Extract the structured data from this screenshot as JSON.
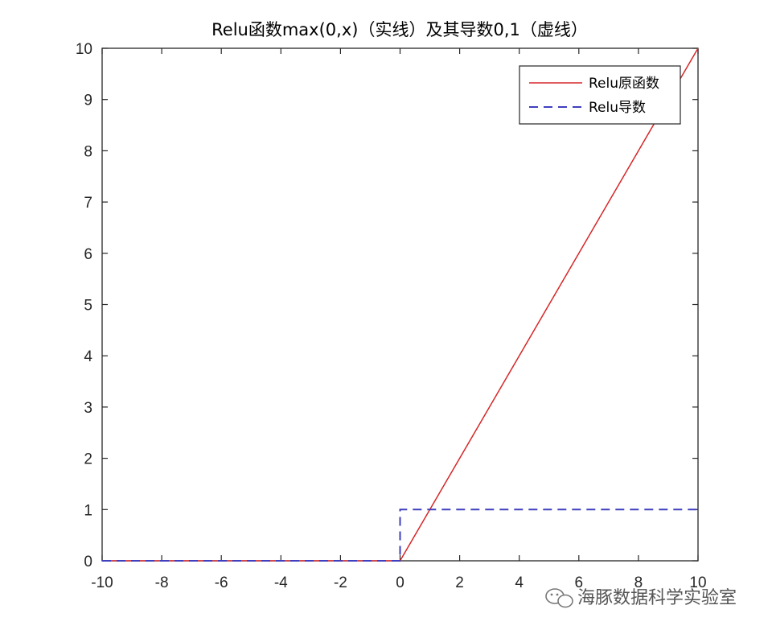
{
  "chart_data": {
    "type": "line",
    "title": "Relu函数max(0,x)（实线）及其导数0,1（虚线）",
    "xlabel": "",
    "ylabel": "",
    "xlim": [
      -10,
      10
    ],
    "ylim": [
      0,
      10
    ],
    "xticks": [
      -10,
      -8,
      -6,
      -4,
      -2,
      0,
      2,
      4,
      6,
      8,
      10
    ],
    "yticks": [
      0,
      1,
      2,
      3,
      4,
      5,
      6,
      7,
      8,
      9,
      10
    ],
    "grid": false,
    "legend_position": "top-right",
    "series": [
      {
        "name": "Relu原函数",
        "color": "#d62728",
        "style": "solid",
        "x": [
          -10,
          0,
          10
        ],
        "y": [
          0,
          0,
          10
        ]
      },
      {
        "name": "Relu导数",
        "color": "#3f3fbf",
        "style": "dashed",
        "x": [
          -10,
          0,
          0,
          10
        ],
        "y": [
          0,
          0,
          1,
          1
        ]
      }
    ]
  },
  "watermark": {
    "text": "海豚数据科学实验室",
    "icon": "wechat-icon"
  }
}
